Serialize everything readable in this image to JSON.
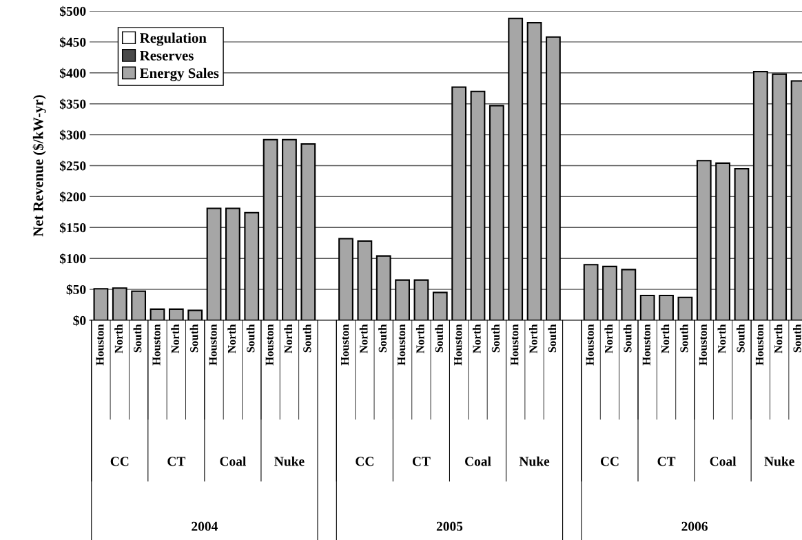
{
  "chart_data": {
    "type": "bar",
    "ylabel": "Net Revenue ($/kW-yr)",
    "categories": [
      "Houston",
      "North",
      "South",
      "Houston",
      "North",
      "South",
      "Houston",
      "North",
      "South",
      "Houston",
      "North",
      "South",
      null,
      "Houston",
      "North",
      "South",
      "Houston",
      "North",
      "South",
      "Houston",
      "North",
      "South",
      "Houston",
      "North",
      "South",
      null,
      "Houston",
      "North",
      "South",
      "Houston",
      "North",
      "South",
      "Houston",
      "North",
      "South",
      "Houston",
      "North",
      "South"
    ],
    "series": [
      {
        "name": "Energy Sales",
        "color": "#a6a6a6",
        "values": [
          51,
          52,
          47,
          18,
          18,
          16,
          181,
          181,
          174,
          292,
          292,
          285,
          null,
          132,
          128,
          104,
          65,
          65,
          45,
          377,
          370,
          347,
          488,
          481,
          458,
          null,
          90,
          87,
          82,
          40,
          40,
          37,
          258,
          254,
          245,
          402,
          398,
          387
        ]
      },
      {
        "name": "Reserves",
        "color": "#4a4a4a",
        "values": [
          null,
          null,
          null,
          null,
          null,
          null,
          null,
          null,
          null,
          null,
          null,
          null,
          null,
          null,
          null,
          null,
          null,
          null,
          null,
          null,
          null,
          null,
          null,
          null,
          null,
          null,
          null,
          null,
          null,
          null,
          null,
          null,
          null,
          null,
          null,
          null,
          null,
          null
        ]
      },
      {
        "name": "Regulation",
        "color": "#ffffff",
        "values": [
          null,
          null,
          null,
          null,
          null,
          null,
          null,
          null,
          null,
          null,
          null,
          null,
          null,
          null,
          null,
          null,
          null,
          null,
          null,
          null,
          null,
          null,
          null,
          null,
          null,
          null,
          null,
          null,
          null,
          null,
          null,
          null,
          null,
          null,
          null,
          null,
          null,
          null
        ]
      }
    ],
    "ylim": [
      0,
      500
    ],
    "yticks": [
      {
        "value": 0,
        "label": "$0"
      },
      {
        "value": 50,
        "label": "$50"
      },
      {
        "value": 100,
        "label": "$100"
      },
      {
        "value": 150,
        "label": "$150"
      },
      {
        "value": 200,
        "label": "$200"
      },
      {
        "value": 250,
        "label": "$250"
      },
      {
        "value": 300,
        "label": "$300"
      },
      {
        "value": 350,
        "label": "$350"
      },
      {
        "value": 400,
        "label": "$400"
      },
      {
        "value": 450,
        "label": "$450"
      },
      {
        "value": 500,
        "label": "$500"
      }
    ],
    "grid": "y",
    "legend": "top left",
    "annotations": [
      "CC",
      "CT",
      "Coal",
      "Nuke",
      "CC",
      "CT",
      "Coal",
      "Nuke",
      "CC",
      "CT",
      "Coal",
      "Nuke",
      "2004",
      "2005",
      "2006"
    ]
  }
}
